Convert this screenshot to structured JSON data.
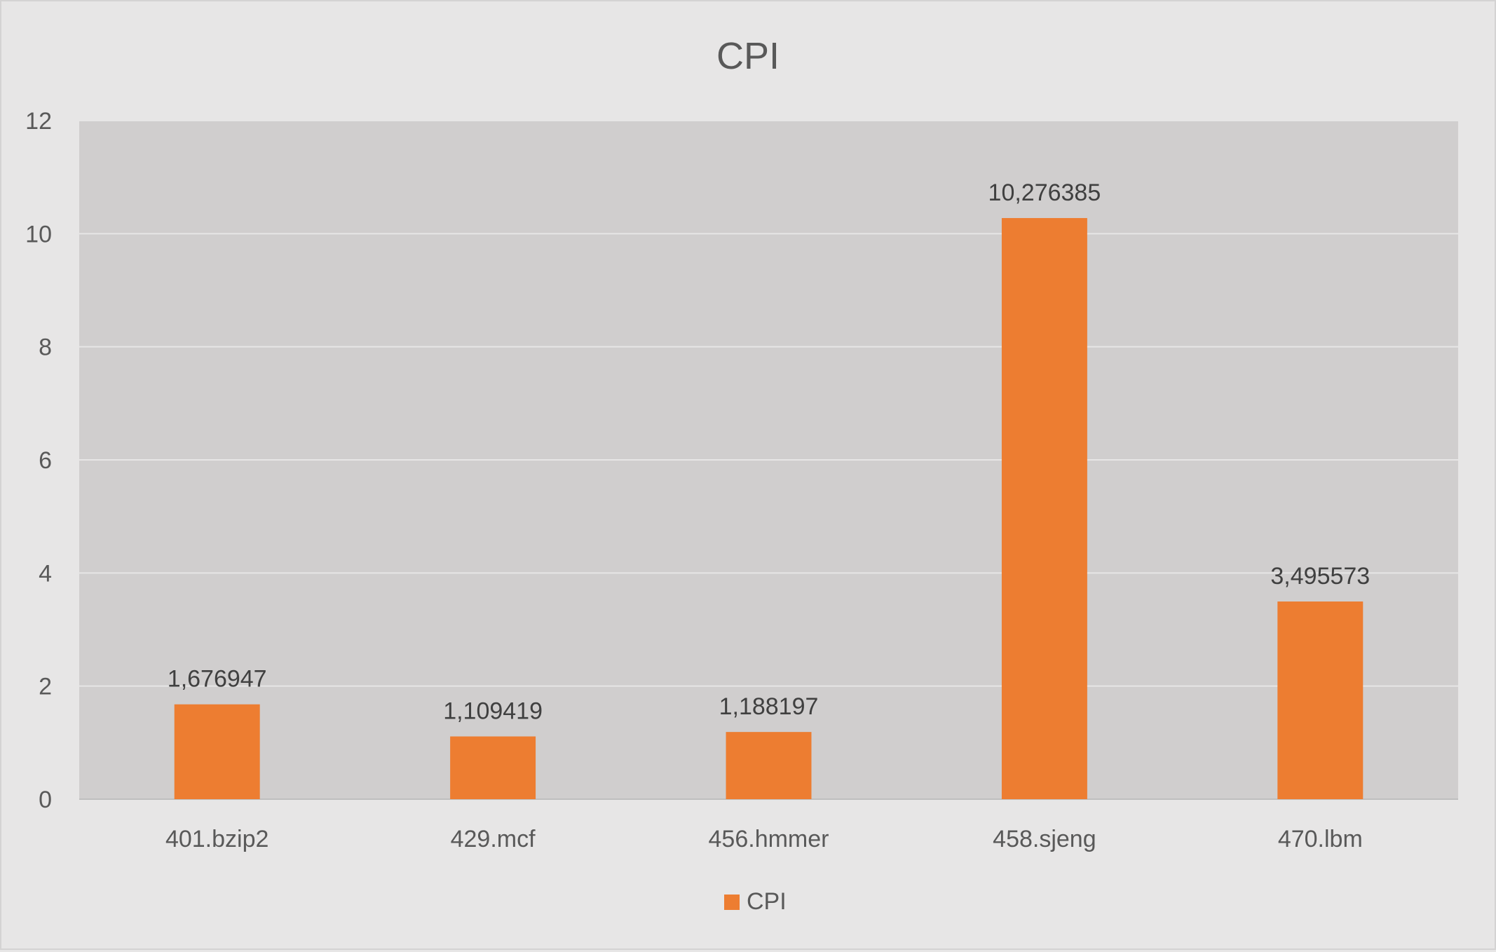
{
  "chart_data": {
    "type": "bar",
    "title": "CPI",
    "xlabel": "",
    "ylabel": "",
    "categories": [
      "401.bzip2",
      "429.mcf",
      "456.hmmer",
      "458.sjeng",
      "470.lbm"
    ],
    "series": [
      {
        "name": "CPI",
        "values": [
          1.676947,
          1.109419,
          1.188197,
          10.276385,
          3.495573
        ],
        "data_labels": [
          "1,676947",
          "1,109419",
          "1,188197",
          "10,276385",
          "3,495573"
        ],
        "color": "#ed7d31"
      }
    ],
    "ylim": [
      0,
      12
    ],
    "yticks": [
      "0",
      "2",
      "4",
      "6",
      "8",
      "10",
      "12"
    ],
    "grid": true,
    "legend": "bottom",
    "colors": {
      "background": "#e7e6e6",
      "plot_area": "#d0cece",
      "gridline": "#e7e6e6",
      "text": "#595959",
      "data_label": "#404040"
    }
  }
}
